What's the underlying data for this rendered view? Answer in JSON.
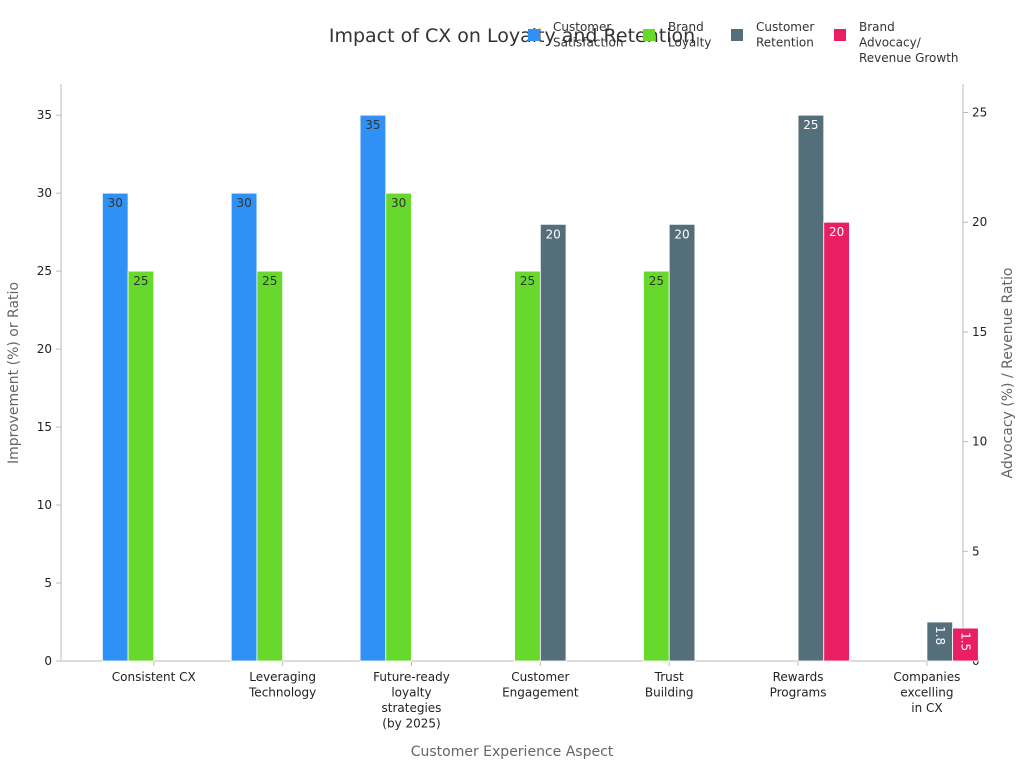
{
  "chart_data": {
    "type": "bar",
    "title": "Impact of CX on Loyalty and Retention",
    "xlabel": "Customer Experience Aspect",
    "ylabel": "Improvement (%) or Ratio",
    "y2label": "Advocacy (%) / Revenue Ratio",
    "ylim": [
      0,
      37
    ],
    "y2lim": [
      0,
      26.3
    ],
    "yticks": [
      "0",
      "5",
      "10",
      "15",
      "20",
      "25",
      "30",
      "35"
    ],
    "y2ticks": [
      "0",
      "5",
      "10",
      "15",
      "20",
      "25"
    ],
    "grid": false,
    "legend_position": "top-right",
    "categories": [
      [
        "Consistent CX"
      ],
      [
        "Leveraging",
        "Technology"
      ],
      [
        "Future-ready",
        "loyalty",
        "strategies",
        "(by 2025)"
      ],
      [
        "Customer",
        "Engagement"
      ],
      [
        "Trust",
        "Building"
      ],
      [
        "Rewards",
        "Programs"
      ],
      [
        "Companies",
        "excelling",
        "in CX"
      ]
    ],
    "series": [
      {
        "name": [
          "Customer",
          "Satisfaction"
        ],
        "color": "#2f91f5",
        "axis": "left",
        "values": [
          30,
          30,
          35,
          null,
          null,
          null,
          null
        ],
        "labels": [
          "30",
          "30",
          "35",
          null,
          null,
          null,
          null
        ]
      },
      {
        "name": [
          "Brand",
          "Loyalty"
        ],
        "color": "#66d92a",
        "axis": "left",
        "values": [
          25,
          25,
          30,
          25,
          25,
          null,
          null
        ],
        "labels": [
          "25",
          "25",
          "30",
          "25",
          "25",
          null,
          null
        ]
      },
      {
        "name": [
          "Customer",
          "Retention"
        ],
        "color": "#546e7a",
        "axis": "left",
        "values": [
          null,
          null,
          null,
          28,
          28,
          35,
          2.5
        ],
        "labels": [
          null,
          null,
          null,
          "20",
          "20",
          "25",
          "1.8"
        ]
      },
      {
        "name": [
          "Brand",
          "Advocacy/",
          "Revenue Growth"
        ],
        "color": "#e91e63",
        "axis": "right",
        "values": [
          null,
          null,
          null,
          null,
          null,
          20,
          1.5
        ],
        "labels": [
          null,
          null,
          null,
          null,
          null,
          "20",
          "1.5"
        ]
      }
    ]
  }
}
